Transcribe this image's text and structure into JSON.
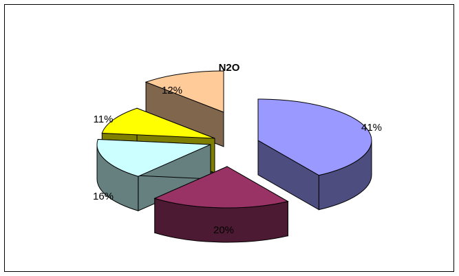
{
  "chart_data": {
    "type": "pie",
    "title": "N2O",
    "slices": [
      {
        "label": "41%",
        "value": 41,
        "color": "#9999ff",
        "dark": "#4d4d80"
      },
      {
        "label": "20%",
        "value": 20,
        "color": "#993366",
        "dark": "#4d1a33"
      },
      {
        "label": "16%",
        "value": 16,
        "color": "#ccffff",
        "dark": "#668080"
      },
      {
        "label": "11%",
        "value": 11,
        "color": "#ffff00",
        "dark": "#808000"
      },
      {
        "label": "12%",
        "value": 12,
        "color": "#ffcc99",
        "dark": "#80664d"
      }
    ],
    "exploded": true,
    "legend": "none"
  }
}
